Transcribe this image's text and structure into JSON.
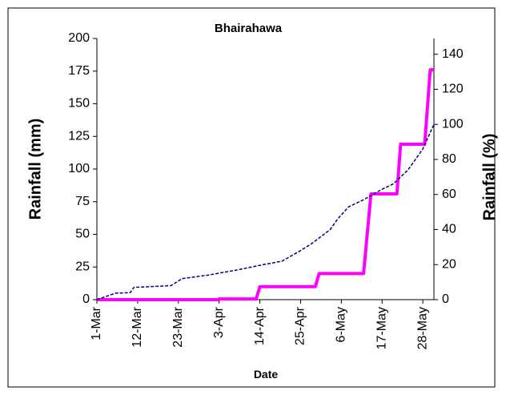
{
  "chart_data": {
    "type": "line",
    "title": "Bhairahawa",
    "xlabel": "Date",
    "ylabel": "Rainfall (mm)",
    "y2label": "Rainfall (%)",
    "xlim": [
      0,
      91
    ],
    "xticks": [
      {
        "value": 0,
        "label": "1-Mar"
      },
      {
        "value": 11,
        "label": "12-Mar"
      },
      {
        "value": 22,
        "label": "23-Mar"
      },
      {
        "value": 33,
        "label": "3-Apr"
      },
      {
        "value": 44,
        "label": "14-Apr"
      },
      {
        "value": 55,
        "label": "25-Apr"
      },
      {
        "value": 66,
        "label": "6-May"
      },
      {
        "value": 77,
        "label": "17-May"
      },
      {
        "value": 88,
        "label": "28-May"
      }
    ],
    "ylim": [
      0,
      200
    ],
    "yticks": [
      0,
      25,
      50,
      75,
      100,
      125,
      150,
      175,
      200
    ],
    "y2lim": [
      0,
      149
    ],
    "y2ticks": [
      0,
      20,
      40,
      60,
      80,
      100,
      120,
      140
    ],
    "series": [
      {
        "color": "#ff00ff",
        "style": "solid",
        "x": [
          0,
          33,
          33,
          43,
          44,
          59,
          60,
          72,
          74,
          81,
          82,
          88.5,
          90,
          91
        ],
        "values": [
          0,
          0,
          0.5,
          0.5,
          10,
          10,
          20,
          20,
          81,
          81,
          119,
          119,
          176,
          176
        ]
      },
      {
        "color": "#000080",
        "style": "dashed",
        "axis": "y2",
        "x": [
          0,
          5,
          9,
          10,
          20,
          23,
          30,
          38,
          45,
          50,
          55,
          58,
          63,
          65,
          68,
          72,
          77,
          80,
          84,
          88,
          91
        ],
        "values": [
          0,
          3.7,
          4,
          7,
          8,
          12,
          14,
          17,
          20,
          22,
          28,
          32,
          40,
          46,
          53,
          57,
          63,
          66,
          74,
          86,
          100
        ]
      }
    ]
  }
}
